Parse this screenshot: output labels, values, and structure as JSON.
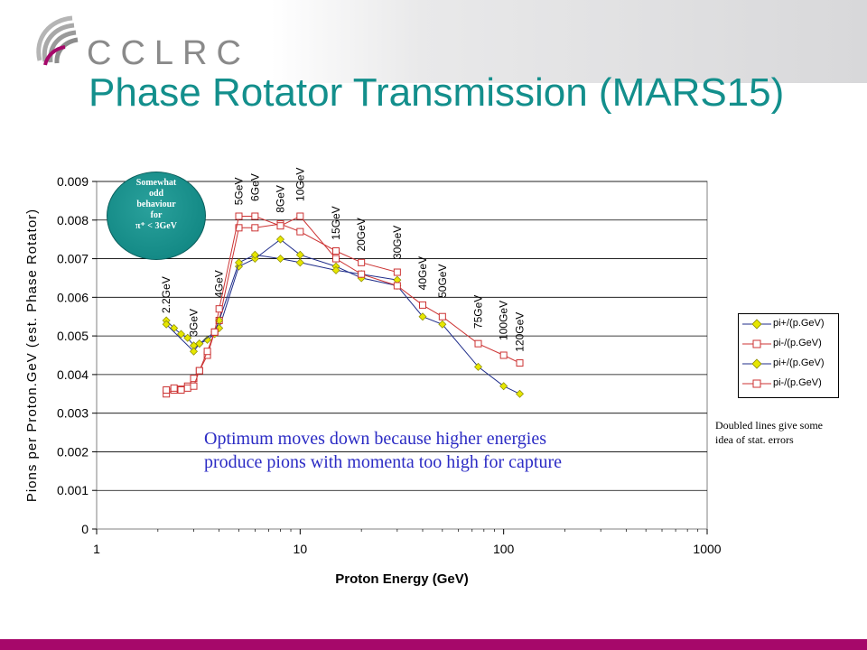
{
  "slide": {
    "logo_text": "CCLRC",
    "title": "Phase Rotator Transmission (MARS15)"
  },
  "colors": {
    "title": "#138f8c",
    "pi_plus": "#e6e600",
    "pi_minus": "#cc3333",
    "pi_plus_line": "#1f2d8a",
    "pi_minus_line": "#cc3333",
    "bottom_bar": "#a6086a",
    "callout": "#148a86"
  },
  "callout": {
    "lines": [
      "Somewhat",
      "odd",
      "behaviour",
      "for",
      "π⁺ < 3GeV"
    ]
  },
  "annotation": "Optimum moves down because higher energies produce pions with momenta too high for capture",
  "note": "Doubled lines give some idea of stat. errors",
  "chart_data": {
    "type": "line",
    "x_scale": "log",
    "xlabel": "Proton Energy (GeV)",
    "ylabel": "Pions per Proton.GeV (est. Phase Rotator)",
    "xlim": [
      1,
      1000
    ],
    "ylim": [
      0,
      0.009
    ],
    "x_ticks": [
      "1",
      "10",
      "100",
      "1000"
    ],
    "y_ticks": [
      "0",
      "0.001",
      "0.002",
      "0.003",
      "0.004",
      "0.005",
      "0.006",
      "0.007",
      "0.008",
      "0.009"
    ],
    "grid": "horizontal",
    "legend_position": "right",
    "energy_labels": [
      {
        "text": "2.2GeV",
        "x": 2.2,
        "y": 0.0054
      },
      {
        "text": "3GeV",
        "x": 3,
        "y": 0.0048
      },
      {
        "text": "4GeV",
        "x": 4,
        "y": 0.0058
      },
      {
        "text": "5GeV",
        "x": 5,
        "y": 0.0082
      },
      {
        "text": "6GeV",
        "x": 6,
        "y": 0.0083
      },
      {
        "text": "8GeV",
        "x": 8,
        "y": 0.008
      },
      {
        "text": "10GeV",
        "x": 10,
        "y": 0.0083
      },
      {
        "text": "15GeV",
        "x": 15,
        "y": 0.0073
      },
      {
        "text": "20GeV",
        "x": 20,
        "y": 0.007
      },
      {
        "text": "30GeV",
        "x": 30,
        "y": 0.0068
      },
      {
        "text": "40GeV",
        "x": 40,
        "y": 0.006
      },
      {
        "text": "50GeV",
        "x": 50,
        "y": 0.0058
      },
      {
        "text": "75GeV",
        "x": 75,
        "y": 0.005
      },
      {
        "text": "100GeV",
        "x": 100,
        "y": 0.0047
      },
      {
        "text": "120GeV",
        "x": 120,
        "y": 0.0044
      }
    ],
    "series": [
      {
        "name": "pi+/(p.GeV)",
        "particle": "pi+",
        "marker": "diamond",
        "x": [
          2.2,
          2.4,
          2.6,
          2.8,
          3,
          3.2,
          3.5,
          3.8,
          4,
          5,
          6,
          8,
          10,
          15,
          20,
          30,
          40,
          50,
          75,
          100,
          120
        ],
        "y": [
          0.0054,
          0.0052,
          0.00505,
          0.00495,
          0.00475,
          0.0048,
          0.0049,
          0.00505,
          0.0052,
          0.0068,
          0.007,
          0.0075,
          0.0071,
          0.0068,
          0.0065,
          0.0063,
          0.0055,
          0.0053,
          0.0042,
          0.0037,
          0.0035
        ]
      },
      {
        "name": "pi-/(p.GeV)",
        "particle": "pi-",
        "marker": "square",
        "x": [
          2.2,
          2.4,
          2.6,
          2.8,
          3,
          3.2,
          3.5,
          3.8,
          4,
          5,
          6,
          8,
          10,
          15,
          20,
          30
        ],
        "y": [
          0.0035,
          0.0036,
          0.00362,
          0.0037,
          0.0039,
          0.0041,
          0.0045,
          0.0051,
          0.0054,
          0.0078,
          0.0078,
          0.0079,
          0.0077,
          0.0072,
          0.0069,
          0.00665
        ]
      },
      {
        "name": "pi+/(p.GeV)",
        "particle": "pi+",
        "marker": "diamond",
        "x": [
          2.2,
          3,
          3.2,
          3.8,
          4,
          5,
          6,
          8,
          10,
          15,
          20,
          30
        ],
        "y": [
          0.0053,
          0.0046,
          0.0048,
          0.0051,
          0.0054,
          0.0069,
          0.0071,
          0.007,
          0.0069,
          0.0067,
          0.0066,
          0.00645
        ]
      },
      {
        "name": "pi-/(p.GeV)",
        "particle": "pi-",
        "marker": "square",
        "x": [
          2.2,
          2.4,
          2.6,
          2.8,
          3,
          3.2,
          3.5,
          3.8,
          4,
          5,
          6,
          8,
          10,
          15,
          20,
          30,
          40,
          50,
          75,
          100,
          120
        ],
        "y": [
          0.0036,
          0.00365,
          0.0036,
          0.00365,
          0.0037,
          0.0041,
          0.0046,
          0.0051,
          0.0057,
          0.0081,
          0.0081,
          0.00785,
          0.0081,
          0.007,
          0.0066,
          0.0063,
          0.0058,
          0.0055,
          0.0048,
          0.0045,
          0.0043
        ]
      }
    ]
  }
}
